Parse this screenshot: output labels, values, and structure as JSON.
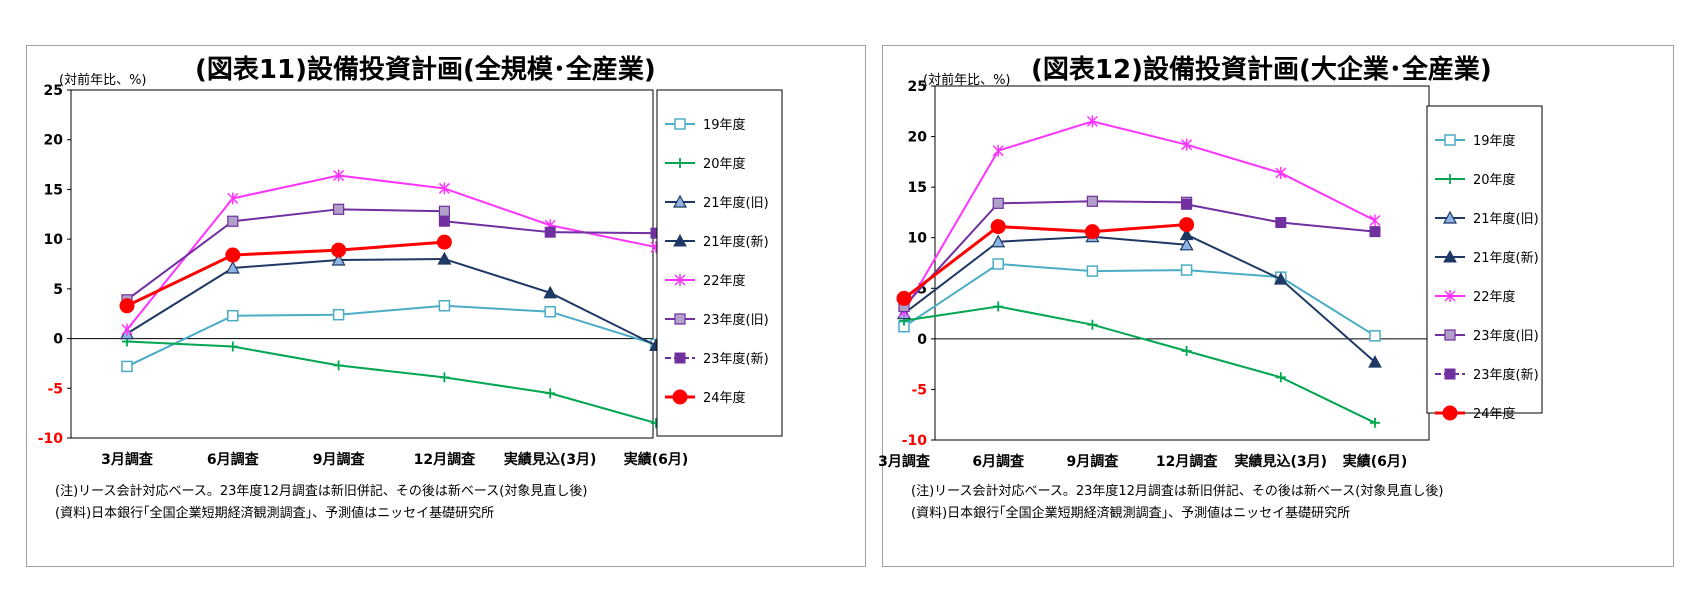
{
  "chart_data": [
    {
      "type": "line",
      "title": "(図表11)設備投資計画(全規模･全産業)",
      "unit_label": "(対前年比、%)",
      "categories": [
        "3月調査",
        "6月調査",
        "9月調査",
        "12月調査",
        "実績見込(3月)",
        "実績(6月)"
      ],
      "ylim": [
        -10,
        25
      ],
      "yticks": [
        -10,
        -5,
        0,
        5,
        10,
        15,
        20,
        25
      ],
      "legend_position": "right",
      "series": [
        {
          "name": "19年度",
          "color": "#4bacc6",
          "marker": "square-open",
          "values": [
            -2.8,
            2.3,
            2.4,
            3.3,
            2.7,
            -0.6
          ]
        },
        {
          "name": "20年度",
          "color": "#00a651",
          "marker": "plus",
          "values": [
            -0.3,
            -0.8,
            -2.7,
            -3.9,
            -5.5,
            -8.5
          ]
        },
        {
          "name": "21年度(旧)",
          "color": "#1f3864",
          "marker": "triangle-blue",
          "values": [
            0.5,
            7.1,
            7.9,
            8.0,
            null,
            null
          ]
        },
        {
          "name": "21年度(新)",
          "color": "#1f3864",
          "marker": "triangle",
          "values": [
            null,
            null,
            null,
            8.0,
            4.6,
            -0.7
          ]
        },
        {
          "name": "22年度",
          "color": "#ff33ff",
          "marker": "star",
          "values": [
            0.9,
            14.1,
            16.4,
            15.1,
            11.4,
            9.2
          ]
        },
        {
          "name": "23年度(旧)",
          "color": "#7030a0",
          "marker": "square-light",
          "values": [
            3.9,
            11.8,
            13.0,
            12.8,
            null,
            null
          ]
        },
        {
          "name": "23年度(新)",
          "color": "#7030a0",
          "marker": "square",
          "values": [
            null,
            null,
            null,
            11.8,
            10.7,
            10.6
          ]
        },
        {
          "name": "24年度",
          "color": "#ff0000",
          "marker": "circle",
          "values": [
            3.3,
            8.4,
            8.9,
            9.7,
            null,
            null
          ]
        }
      ],
      "notes": [
        "(注)リース会計対応ベース。23年度12月調査は新旧併記、その後は新ベース(対象見直し後)",
        "(資料)日本銀行｢全国企業短期経済観測調査｣、予測値はニッセイ基礎研究所"
      ]
    },
    {
      "type": "line",
      "title": "(図表12)設備投資計画(大企業･全産業)",
      "unit_label": "(対前年比、%)",
      "categories": [
        "3月調査",
        "6月調査",
        "9月調査",
        "12月調査",
        "実績見込(3月)",
        "実績(6月)"
      ],
      "ylim": [
        -10,
        25
      ],
      "yticks": [
        -10,
        -5,
        0,
        5,
        10,
        15,
        20,
        25
      ],
      "legend_position": "right",
      "series": [
        {
          "name": "19年度",
          "color": "#4bacc6",
          "marker": "square-open",
          "values": [
            1.2,
            7.4,
            6.7,
            6.8,
            6.1,
            0.3
          ]
        },
        {
          "name": "20年度",
          "color": "#00a651",
          "marker": "plus",
          "values": [
            1.8,
            3.2,
            1.4,
            -1.2,
            -3.8,
            -8.3
          ]
        },
        {
          "name": "21年度(旧)",
          "color": "#1f3864",
          "marker": "triangle-blue",
          "values": [
            2.5,
            9.6,
            10.1,
            9.3,
            null,
            null
          ]
        },
        {
          "name": "21年度(新)",
          "color": "#1f3864",
          "marker": "triangle",
          "values": [
            null,
            null,
            null,
            10.3,
            5.9,
            -2.3
          ]
        },
        {
          "name": "22年度",
          "color": "#ff33ff",
          "marker": "star",
          "values": [
            2.7,
            18.6,
            21.5,
            19.2,
            16.4,
            11.7
          ]
        },
        {
          "name": "23年度(旧)",
          "color": "#7030a0",
          "marker": "square-light",
          "values": [
            3.2,
            13.4,
            13.6,
            13.5,
            null,
            null
          ]
        },
        {
          "name": "23年度(新)",
          "color": "#7030a0",
          "marker": "square",
          "values": [
            null,
            null,
            null,
            13.3,
            11.5,
            10.6
          ]
        },
        {
          "name": "24年度",
          "color": "#ff0000",
          "marker": "circle",
          "values": [
            4.0,
            11.1,
            10.6,
            11.3,
            null,
            null
          ]
        }
      ],
      "notes": [
        "(注)リース会計対応ベース。23年度12月調査は新旧併記、その後は新ベース(対象見直し後)",
        "(資料)日本銀行｢全国企業短期経済観測調査｣、予測値はニッセイ基礎研究所"
      ]
    }
  ]
}
